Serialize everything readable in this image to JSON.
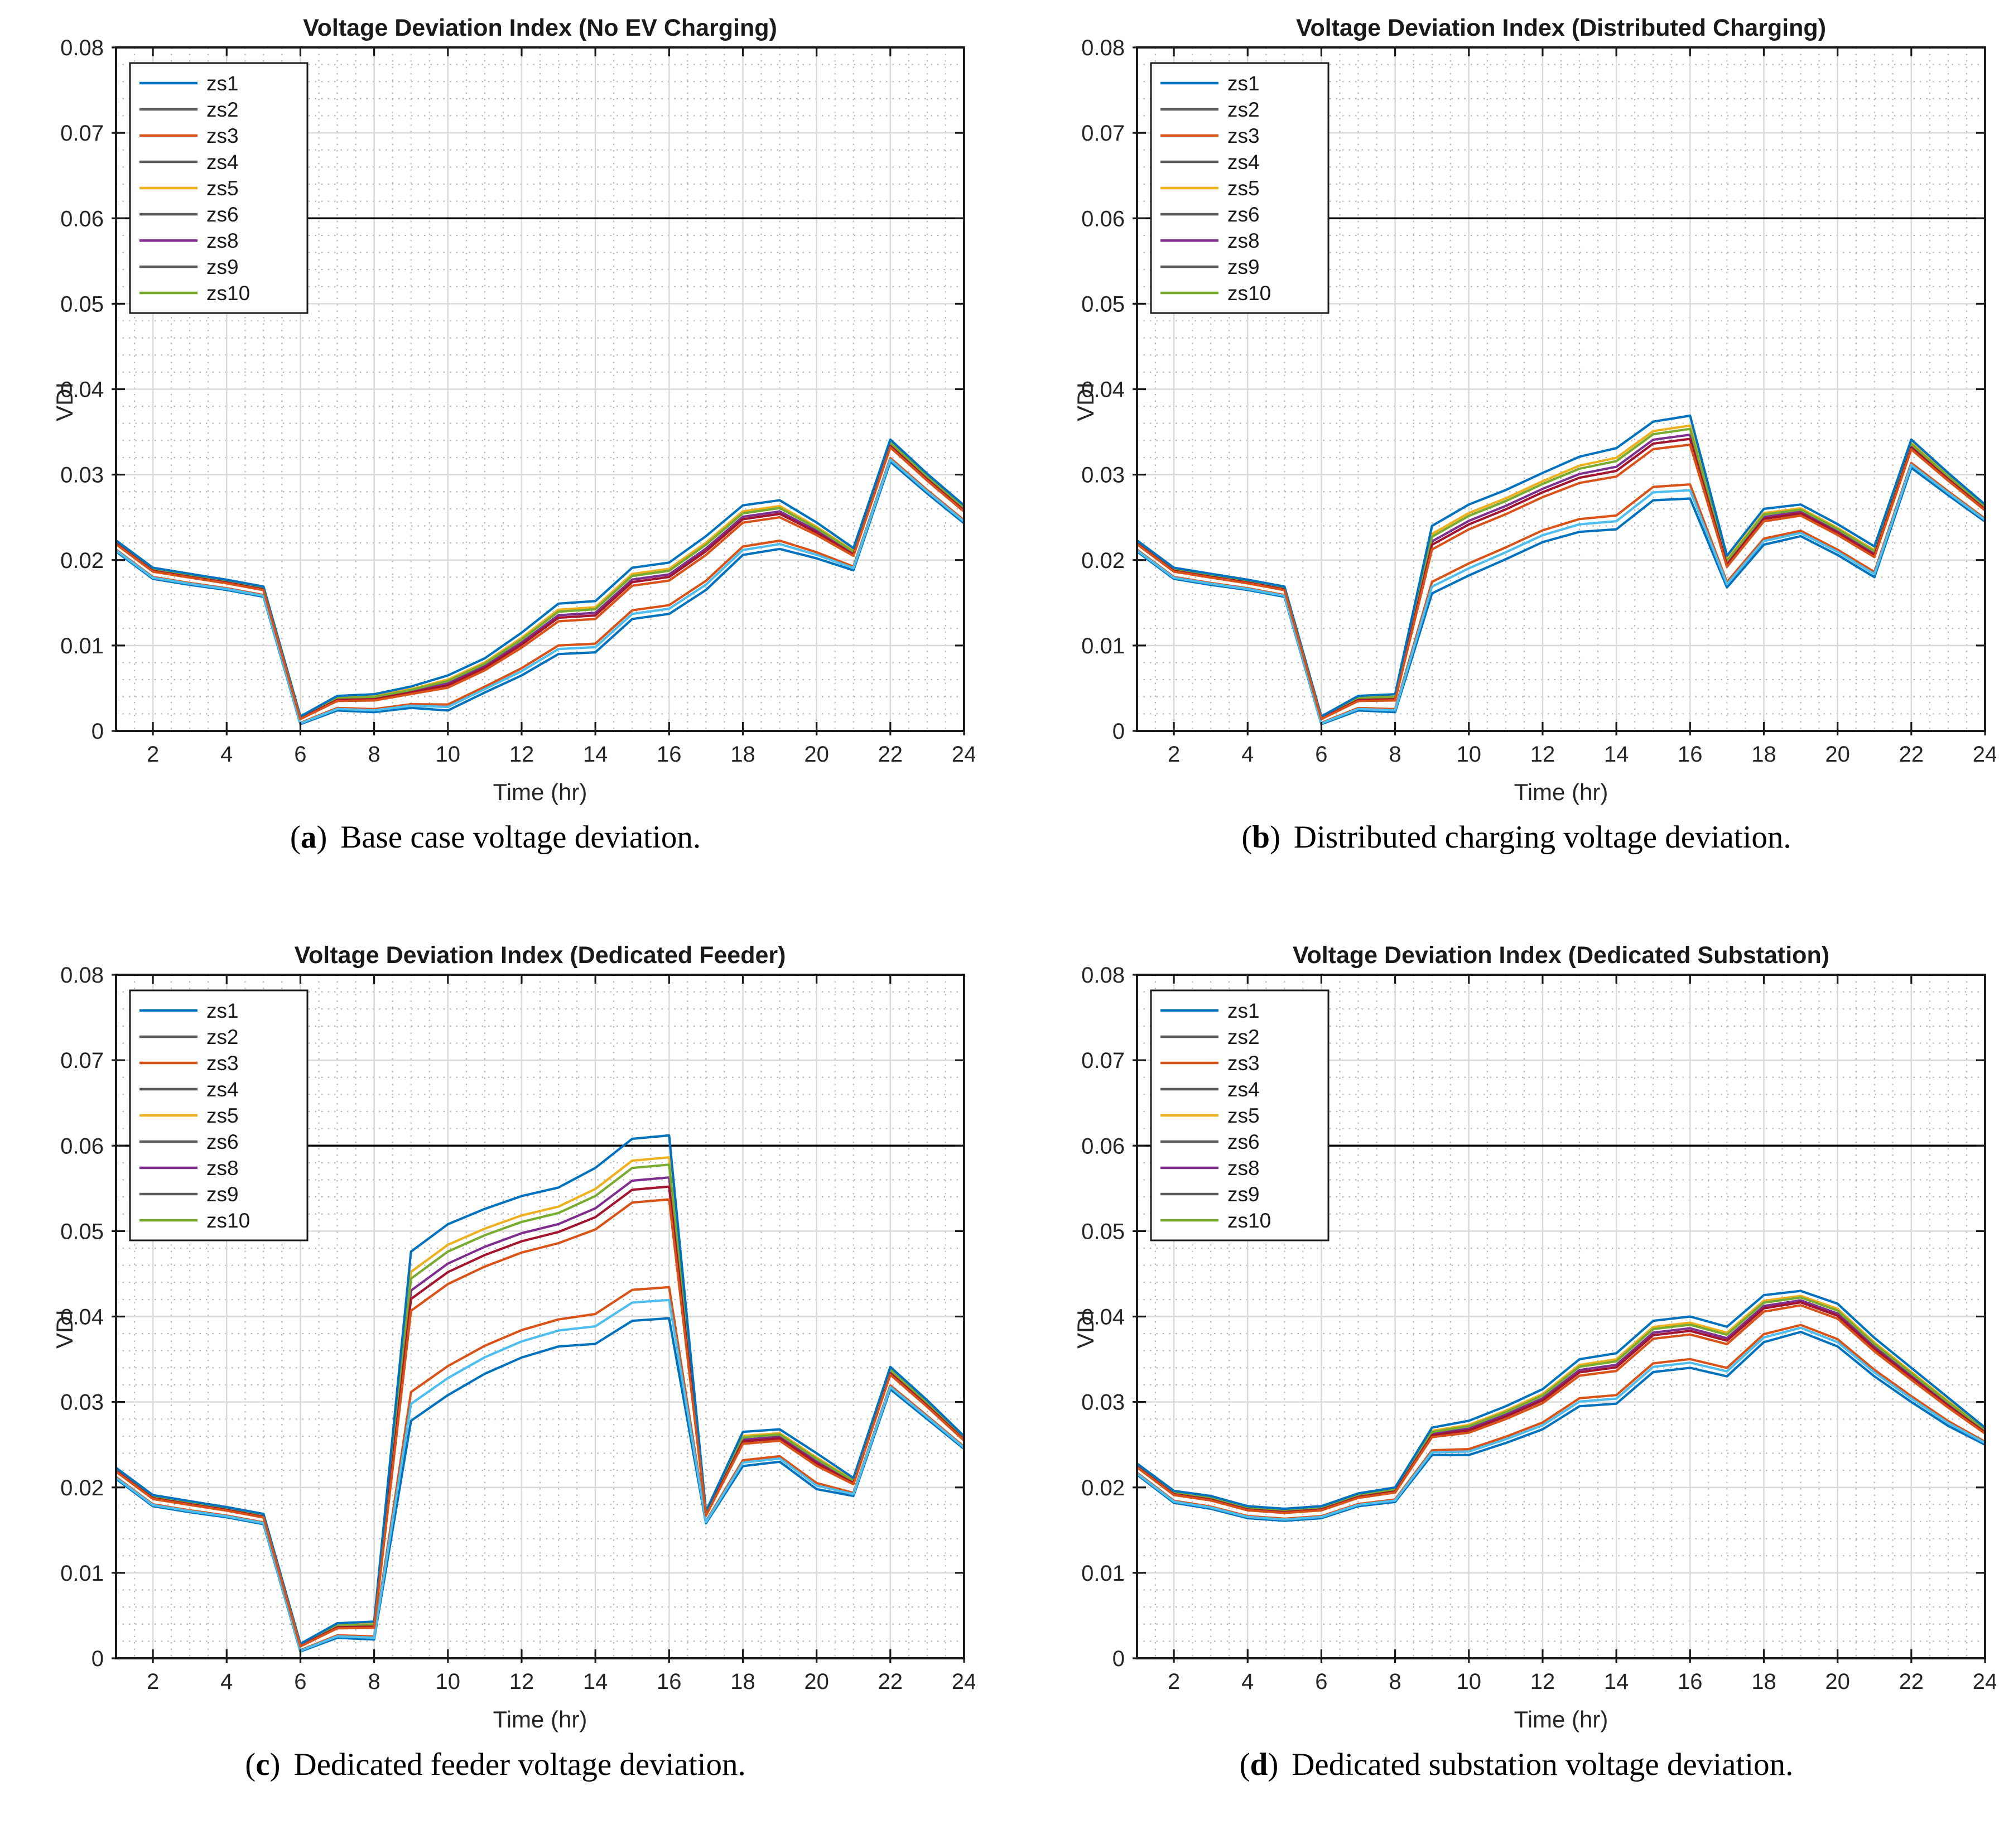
{
  "figure": {
    "background": "#ffffff",
    "description": "Four MATLAB-style voltage deviation index plots arranged in a 2x2 grid"
  },
  "colors": {
    "blue": "#0072BD",
    "orange": "#D95319",
    "yellow": "#EDB120",
    "purple": "#7E2F8E",
    "green": "#77AC30",
    "cyan": "#4DBEEE",
    "maroon": "#A2142F",
    "legend_gray": "#5B5B5B",
    "axis_text": "#262626",
    "box": "#1a1a1a",
    "grid_major": "#d9d9d9",
    "grid_minor": "#9e9e9e",
    "threshold_line": "#000000",
    "legend_bg": "#ffffff",
    "legend_border": "#1a1a1a",
    "title_color": "#1a1a1a"
  },
  "axes": {
    "xlabel": "Time (hr)",
    "ylabel": "VDI",
    "xlim": [
      1,
      24
    ],
    "ylim": [
      0,
      0.08
    ],
    "xticks": [
      2,
      4,
      6,
      8,
      10,
      12,
      14,
      16,
      18,
      20,
      22,
      24
    ],
    "xtick_labels": [
      "2",
      "4",
      "6",
      "8",
      "10",
      "12",
      "14",
      "16",
      "18",
      "20",
      "22",
      "24"
    ],
    "ytick_values": [
      0,
      0.01,
      0.02,
      0.03,
      0.04,
      0.05,
      0.06,
      0.07,
      0.08
    ],
    "ytick_labels": [
      "0",
      "0.01",
      "0.02",
      "0.03",
      "0.04",
      "0.05",
      "0.06",
      "0.07",
      "0.08"
    ],
    "x_minor_step": 0.5,
    "y_minor_step": 0.002,
    "threshold_value": 0.06,
    "grid": "on"
  },
  "series": [
    {
      "name": "zs1",
      "legend_color": "blue",
      "plot_color": "blue",
      "weight": 0.0
    },
    {
      "name": "zs2",
      "legend_color": "legend_gray",
      "plot_color": "orange",
      "weight": 0.17
    },
    {
      "name": "zs3",
      "legend_color": "orange",
      "plot_color": "yellow",
      "weight": 0.88
    },
    {
      "name": "zs4",
      "legend_color": "legend_gray",
      "plot_color": "purple",
      "weight": 0.77
    },
    {
      "name": "zs5",
      "legend_color": "yellow",
      "plot_color": "green",
      "weight": 0.84
    },
    {
      "name": "zs6",
      "legend_color": "legend_gray",
      "plot_color": "cyan",
      "weight": 0.1
    },
    {
      "name": "zs8",
      "legend_color": "purple",
      "plot_color": "maroon",
      "weight": 0.72
    },
    {
      "name": "zs9",
      "legend_color": "legend_gray",
      "plot_color": "blue",
      "weight": 1.0
    },
    {
      "name": "zs10",
      "legend_color": "green",
      "plot_color": "orange",
      "weight": 0.65
    }
  ],
  "chart_data": [
    {
      "id": "a",
      "type": "line",
      "title": "Voltage Deviation Index (No EV Charging)",
      "caption": {
        "open": "(",
        "letter": "a",
        "close": ")",
        "text": "Base case voltage deviation."
      },
      "x": [
        1,
        2,
        3,
        4,
        5,
        6,
        7,
        8,
        9,
        10,
        11,
        12,
        13,
        14,
        15,
        16,
        17,
        18,
        19,
        20,
        21,
        22,
        23,
        24
      ],
      "base_zs1": [
        0.021,
        0.0178,
        0.0171,
        0.0165,
        0.0157,
        0.0008,
        0.0024,
        0.0022,
        0.0027,
        0.0024,
        0.0045,
        0.0065,
        0.009,
        0.0092,
        0.0131,
        0.0137,
        0.0165,
        0.0206,
        0.0213,
        0.0202,
        0.0188,
        0.0315,
        0.0278,
        0.0243
      ],
      "spread_zs1_to_zs9": [
        0.0013,
        0.0013,
        0.0013,
        0.0012,
        0.0012,
        0.0009,
        0.0017,
        0.0021,
        0.0025,
        0.0041,
        0.004,
        0.005,
        0.0059,
        0.006,
        0.006,
        0.006,
        0.0063,
        0.0058,
        0.0057,
        0.0042,
        0.0026,
        0.0026,
        0.0023,
        0.0021
      ],
      "value_rule": "value(series,t) = base_zs1[t] + series.weight * spread_zs1_to_zs9[t]"
    },
    {
      "id": "b",
      "type": "line",
      "title": "Voltage Deviation Index (Distributed Charging)",
      "caption": {
        "open": "(",
        "letter": "b",
        "close": ")",
        "text": "Distributed charging voltage deviation."
      },
      "x": [
        1,
        2,
        3,
        4,
        5,
        6,
        7,
        8,
        9,
        10,
        11,
        12,
        13,
        14,
        15,
        16,
        17,
        18,
        19,
        20,
        21,
        22,
        23,
        24
      ],
      "base_zs1": [
        0.021,
        0.0178,
        0.0171,
        0.0165,
        0.0157,
        0.0008,
        0.0024,
        0.0022,
        0.0161,
        0.0182,
        0.0201,
        0.0221,
        0.0233,
        0.0236,
        0.027,
        0.0272,
        0.0168,
        0.0218,
        0.0228,
        0.0206,
        0.018,
        0.0308,
        0.0276,
        0.0245
      ],
      "spread_zs1_to_zs9": [
        0.0013,
        0.0013,
        0.0013,
        0.0012,
        0.0012,
        0.0009,
        0.0017,
        0.0021,
        0.0079,
        0.0083,
        0.0081,
        0.0081,
        0.0088,
        0.0095,
        0.0092,
        0.0097,
        0.0037,
        0.0042,
        0.0037,
        0.0036,
        0.0036,
        0.0033,
        0.0026,
        0.002
      ],
      "value_rule": "value(series,t) = base_zs1[t] + series.weight * spread_zs1_to_zs9[t]"
    },
    {
      "id": "c",
      "type": "line",
      "title": "Voltage Deviation Index (Dedicated Feeder)",
      "caption": {
        "open": "(",
        "letter": "c",
        "close": ")",
        "text": "Dedicated feeder voltage deviation."
      },
      "x": [
        1,
        2,
        3,
        4,
        5,
        6,
        7,
        8,
        9,
        10,
        11,
        12,
        13,
        14,
        15,
        16,
        17,
        18,
        19,
        20,
        21,
        22,
        23,
        24
      ],
      "base_zs1": [
        0.021,
        0.0178,
        0.0171,
        0.0165,
        0.0157,
        0.0008,
        0.0024,
        0.0022,
        0.0278,
        0.0308,
        0.0333,
        0.0352,
        0.0365,
        0.0368,
        0.0395,
        0.0398,
        0.0158,
        0.0225,
        0.023,
        0.0198,
        0.019,
        0.0315,
        0.028,
        0.0245
      ],
      "spread_zs1_to_zs9": [
        0.0013,
        0.0013,
        0.0013,
        0.0012,
        0.0012,
        0.0009,
        0.0017,
        0.0021,
        0.0198,
        0.02,
        0.0193,
        0.0189,
        0.0186,
        0.0206,
        0.0213,
        0.0214,
        0.0014,
        0.004,
        0.0038,
        0.0042,
        0.0021,
        0.0026,
        0.0022,
        0.0015
      ],
      "value_rule": "value(series,t) = base_zs1[t] + series.weight * spread_zs1_to_zs9[t]"
    },
    {
      "id": "d",
      "type": "line",
      "title": "Voltage Deviation Index (Dedicated Substation)",
      "caption": {
        "open": "(",
        "letter": "d",
        "close": ")",
        "text": "Dedicated substation voltage deviation."
      },
      "x": [
        1,
        2,
        3,
        4,
        5,
        6,
        7,
        8,
        9,
        10,
        11,
        12,
        13,
        14,
        15,
        16,
        17,
        18,
        19,
        20,
        21,
        22,
        23,
        24
      ],
      "base_zs1": [
        0.0215,
        0.0182,
        0.0175,
        0.0164,
        0.0161,
        0.0164,
        0.0178,
        0.0183,
        0.0238,
        0.0238,
        0.0252,
        0.0268,
        0.0295,
        0.0298,
        0.0335,
        0.034,
        0.033,
        0.037,
        0.0382,
        0.0365,
        0.033,
        0.03,
        0.0272,
        0.025
      ],
      "spread_zs1_to_zs9": [
        0.0013,
        0.0014,
        0.0015,
        0.0014,
        0.0014,
        0.0014,
        0.0015,
        0.0017,
        0.0032,
        0.004,
        0.0043,
        0.0047,
        0.0055,
        0.0059,
        0.006,
        0.006,
        0.0058,
        0.0055,
        0.0048,
        0.005,
        0.0045,
        0.004,
        0.0033,
        0.002
      ],
      "value_rule": "value(series,t) = base_zs1[t] + series.weight * spread_zs1_to_zs9[t]"
    }
  ]
}
